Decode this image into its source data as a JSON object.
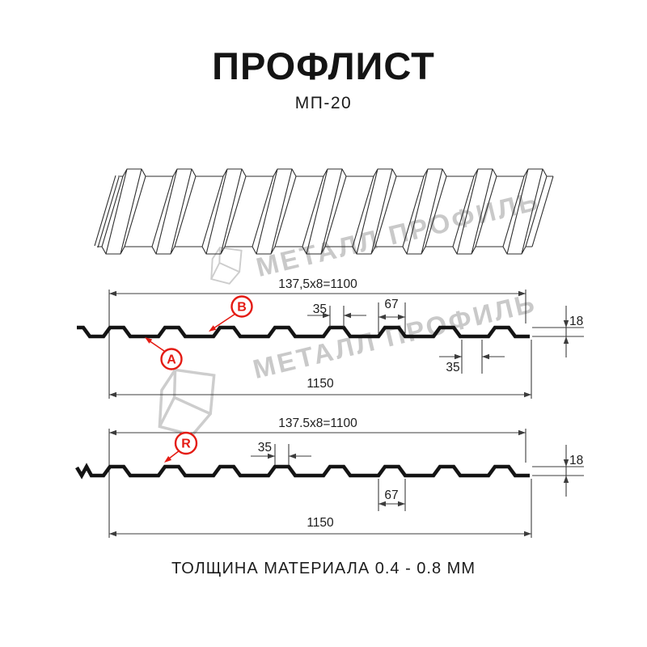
{
  "header": {
    "title": "ПРОФЛИСТ",
    "subtitle": "МП-20"
  },
  "watermark": {
    "brand": "МЕТАЛЛ ПРОФИЛЬ"
  },
  "front_view": {
    "coverage_width": "137,5x8=1100",
    "rib_top_width": "35",
    "rib_base_width": "67",
    "profile_height": "18",
    "rib_spacing": "35",
    "overall_width": "1150",
    "label_a": "A",
    "label_b": "B"
  },
  "reverse_view": {
    "coverage_width": "137.5x8=1100",
    "rib_top_width": "35",
    "valley_width": "67",
    "profile_height": "18",
    "overall_width": "1150",
    "label_r": "R"
  },
  "footer": {
    "caption": "ТОЛЩИНА МАТЕРИАЛА 0.4 - 0.8 ММ"
  },
  "colors": {
    "accent_red": "#e41b13",
    "line_dark": "#141414",
    "watermark_gray": "#c9c9c9"
  }
}
